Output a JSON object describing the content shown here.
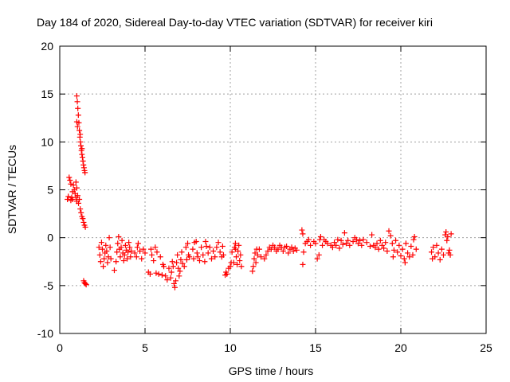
{
  "chart_data": {
    "type": "scatter",
    "title": "Day 184 of 2020, Sidereal Day-to-day VTEC variation (SDTVAR) for receiver kiri",
    "xlabel": "GPS time / hours",
    "ylabel": "SDTVAR / TECUs",
    "xlim": [
      0,
      25
    ],
    "ylim": [
      -10,
      20
    ],
    "xticks": [
      0,
      5,
      10,
      15,
      20,
      25
    ],
    "yticks": [
      -10,
      -5,
      0,
      5,
      10,
      15,
      20
    ],
    "xtick_labels": [
      "0",
      "5",
      "10",
      "15",
      "20",
      "25"
    ],
    "ytick_labels": [
      "-10",
      "-5",
      "0",
      "5",
      "10",
      "15",
      "20"
    ],
    "grid": true,
    "marker": "+",
    "color": "#ff0000",
    "series": [
      {
        "name": "SDTVAR",
        "points": [
          [
            0.45,
            4.0
          ],
          [
            0.5,
            4.3
          ],
          [
            0.55,
            6.3
          ],
          [
            0.6,
            6.0
          ],
          [
            0.65,
            5.6
          ],
          [
            0.7,
            4.2
          ],
          [
            0.75,
            4.8
          ],
          [
            0.8,
            5.5
          ],
          [
            0.85,
            5.0
          ],
          [
            0.9,
            4.6
          ],
          [
            0.95,
            5.8
          ],
          [
            1.0,
            5.2
          ],
          [
            1.05,
            4.4
          ],
          [
            1.1,
            3.6
          ],
          [
            1.15,
            4.0
          ],
          [
            1.2,
            3.0
          ],
          [
            1.25,
            2.6
          ],
          [
            1.3,
            2.2
          ],
          [
            1.35,
            2.0
          ],
          [
            1.4,
            1.6
          ],
          [
            1.45,
            1.3
          ],
          [
            1.5,
            1.1
          ],
          [
            0.95,
            4.2
          ],
          [
            1.0,
            3.8
          ],
          [
            0.65,
            3.9
          ],
          [
            0.75,
            4.0
          ],
          [
            1.0,
            14.8
          ],
          [
            1.03,
            14.2
          ],
          [
            1.06,
            13.5
          ],
          [
            1.09,
            12.8
          ],
          [
            1.0,
            12.1
          ],
          [
            1.04,
            11.6
          ],
          [
            1.12,
            12.0
          ],
          [
            1.15,
            11.2
          ],
          [
            1.18,
            10.5
          ],
          [
            1.21,
            10.0
          ],
          [
            1.24,
            9.6
          ],
          [
            1.27,
            9.1
          ],
          [
            1.3,
            8.7
          ],
          [
            1.33,
            8.4
          ],
          [
            1.36,
            8.0
          ],
          [
            1.39,
            7.6
          ],
          [
            1.42,
            7.3
          ],
          [
            1.45,
            7.0
          ],
          [
            1.48,
            6.8
          ],
          [
            1.2,
            10.8
          ],
          [
            1.3,
            9.3
          ],
          [
            1.4,
            -4.5
          ],
          [
            1.45,
            -4.7
          ],
          [
            1.5,
            -4.8
          ],
          [
            1.55,
            -4.9
          ],
          [
            2.3,
            -1.0
          ],
          [
            2.35,
            -1.8
          ],
          [
            2.4,
            -2.5
          ],
          [
            2.45,
            -0.5
          ],
          [
            2.5,
            -1.2
          ],
          [
            2.55,
            -3.0
          ],
          [
            2.6,
            -2.2
          ],
          [
            2.65,
            -1.6
          ],
          [
            2.7,
            -0.8
          ],
          [
            2.75,
            -1.4
          ],
          [
            2.8,
            -2.6
          ],
          [
            2.85,
            -2.0
          ],
          [
            2.9,
            0.0
          ],
          [
            2.95,
            -1.0
          ],
          [
            3.0,
            -2.2
          ],
          [
            3.2,
            -3.4
          ],
          [
            3.3,
            -2.5
          ],
          [
            3.35,
            -1.5
          ],
          [
            3.4,
            -0.6
          ],
          [
            3.45,
            0.1
          ],
          [
            3.5,
            -1.2
          ],
          [
            3.55,
            -2.0
          ],
          [
            3.6,
            -1.0
          ],
          [
            3.65,
            -0.3
          ],
          [
            3.7,
            -1.6
          ],
          [
            3.75,
            -2.4
          ],
          [
            3.8,
            -1.8
          ],
          [
            3.85,
            -0.8
          ],
          [
            3.9,
            -1.3
          ],
          [
            3.95,
            -2.2
          ],
          [
            4.0,
            -1.5
          ],
          [
            4.05,
            -0.5
          ],
          [
            4.1,
            -1.0
          ],
          [
            4.15,
            -2.0
          ],
          [
            4.2,
            -1.4
          ],
          [
            4.4,
            -1.6
          ],
          [
            4.5,
            -2.0
          ],
          [
            4.55,
            -1.0
          ],
          [
            4.6,
            -0.6
          ],
          [
            4.7,
            -1.4
          ],
          [
            4.8,
            -2.2
          ],
          [
            4.9,
            -1.2
          ],
          [
            5.0,
            -1.6
          ],
          [
            5.2,
            -3.6
          ],
          [
            5.3,
            -3.8
          ],
          [
            5.35,
            -1.2
          ],
          [
            5.4,
            -1.8
          ],
          [
            5.5,
            -2.4
          ],
          [
            5.6,
            -1.0
          ],
          [
            5.65,
            -3.7
          ],
          [
            5.7,
            -1.5
          ],
          [
            5.8,
            -3.8
          ],
          [
            5.9,
            -2.0
          ],
          [
            6.0,
            -3.9
          ],
          [
            6.05,
            -2.8
          ],
          [
            6.1,
            -3.0
          ],
          [
            6.2,
            -4.0
          ],
          [
            6.3,
            -4.4
          ],
          [
            6.4,
            -3.2
          ],
          [
            6.5,
            -4.2
          ],
          [
            6.55,
            -3.6
          ],
          [
            6.6,
            -2.5
          ],
          [
            6.65,
            -3.0
          ],
          [
            6.7,
            -4.8
          ],
          [
            6.75,
            -5.2
          ],
          [
            6.8,
            -4.5
          ],
          [
            6.85,
            -2.6
          ],
          [
            6.9,
            -1.8
          ],
          [
            6.95,
            -3.2
          ],
          [
            7.0,
            -4.0
          ],
          [
            7.05,
            -3.5
          ],
          [
            7.1,
            -2.3
          ],
          [
            7.15,
            -1.5
          ],
          [
            7.2,
            -2.7
          ],
          [
            7.3,
            -3.0
          ],
          [
            7.4,
            -1.0
          ],
          [
            7.45,
            -2.3
          ],
          [
            7.5,
            -0.6
          ],
          [
            7.55,
            -1.8
          ],
          [
            7.6,
            -2.0
          ],
          [
            7.8,
            -1.2
          ],
          [
            7.85,
            -2.2
          ],
          [
            7.9,
            -0.5
          ],
          [
            8.0,
            -0.4
          ],
          [
            8.05,
            -1.6
          ],
          [
            8.1,
            -2.0
          ],
          [
            8.2,
            -2.4
          ],
          [
            8.3,
            -1.0
          ],
          [
            8.4,
            -1.8
          ],
          [
            8.5,
            -2.5
          ],
          [
            8.55,
            -0.4
          ],
          [
            8.6,
            -0.9
          ],
          [
            8.7,
            -1.6
          ],
          [
            8.8,
            -1.0
          ],
          [
            8.9,
            -2.2
          ],
          [
            9.0,
            -1.4
          ],
          [
            9.1,
            -2.0
          ],
          [
            9.2,
            -1.0
          ],
          [
            9.3,
            -0.5
          ],
          [
            9.4,
            -1.5
          ],
          [
            9.5,
            -2.0
          ],
          [
            9.55,
            -0.9
          ],
          [
            9.6,
            -1.8
          ],
          [
            9.7,
            -3.9
          ],
          [
            9.75,
            -3.6
          ],
          [
            9.8,
            -3.8
          ],
          [
            9.9,
            -3.2
          ],
          [
            10.0,
            -3.0
          ],
          [
            10.05,
            -2.6
          ],
          [
            10.1,
            -1.5
          ],
          [
            10.2,
            -2.6
          ],
          [
            10.25,
            -1.0
          ],
          [
            10.3,
            -0.6
          ],
          [
            10.35,
            -2.0
          ],
          [
            10.4,
            -2.8
          ],
          [
            10.45,
            -1.4
          ],
          [
            10.5,
            -0.8
          ],
          [
            10.55,
            -2.4
          ],
          [
            10.6,
            -1.8
          ],
          [
            10.65,
            -3.0
          ],
          [
            10.3,
            -1.2
          ],
          [
            11.3,
            -3.5
          ],
          [
            11.35,
            -3.0
          ],
          [
            11.4,
            -2.2
          ],
          [
            11.45,
            -1.6
          ],
          [
            11.5,
            -2.6
          ],
          [
            11.55,
            -1.2
          ],
          [
            11.6,
            -1.8
          ],
          [
            11.7,
            -1.2
          ],
          [
            11.8,
            -2.0
          ],
          [
            12.0,
            -2.2
          ],
          [
            12.1,
            -1.8
          ],
          [
            12.2,
            -1.4
          ],
          [
            12.3,
            -1.0
          ],
          [
            12.4,
            -1.2
          ],
          [
            12.5,
            -0.8
          ],
          [
            12.6,
            -1.0
          ],
          [
            12.7,
            -1.4
          ],
          [
            12.8,
            -1.2
          ],
          [
            12.9,
            -0.8
          ],
          [
            13.0,
            -1.0
          ],
          [
            13.1,
            -1.4
          ],
          [
            13.2,
            -1.0
          ],
          [
            13.3,
            -0.9
          ],
          [
            13.4,
            -1.6
          ],
          [
            13.5,
            -1.2
          ],
          [
            13.6,
            -1.0
          ],
          [
            13.7,
            -1.4
          ],
          [
            13.8,
            -1.1
          ],
          [
            13.9,
            -1.3
          ],
          [
            14.2,
            0.8
          ],
          [
            14.25,
            0.4
          ],
          [
            14.25,
            -2.8
          ],
          [
            14.3,
            -1.5
          ],
          [
            14.4,
            -0.6
          ],
          [
            14.5,
            -0.4
          ],
          [
            14.6,
            -0.2
          ],
          [
            14.7,
            -0.8
          ],
          [
            14.9,
            -0.4
          ],
          [
            15.0,
            -0.6
          ],
          [
            15.1,
            -2.2
          ],
          [
            15.2,
            -1.8
          ],
          [
            15.25,
            -0.2
          ],
          [
            15.3,
            0.1
          ],
          [
            15.4,
            -0.8
          ],
          [
            15.5,
            -0.2
          ],
          [
            15.6,
            -0.4
          ],
          [
            15.7,
            -0.6
          ],
          [
            15.9,
            -0.8
          ],
          [
            16.0,
            -1.0
          ],
          [
            16.1,
            -0.5
          ],
          [
            16.2,
            -0.8
          ],
          [
            16.3,
            -0.2
          ],
          [
            16.4,
            -1.1
          ],
          [
            16.5,
            -0.3
          ],
          [
            16.6,
            -0.7
          ],
          [
            16.7,
            0.5
          ],
          [
            16.8,
            -0.6
          ],
          [
            16.9,
            -0.3
          ],
          [
            17.0,
            -0.8
          ],
          [
            17.2,
            -0.4
          ],
          [
            17.3,
            0.0
          ],
          [
            17.4,
            -0.2
          ],
          [
            17.5,
            -0.6
          ],
          [
            17.6,
            -0.3
          ],
          [
            17.7,
            -0.8
          ],
          [
            17.8,
            -0.2
          ],
          [
            18.0,
            -0.5
          ],
          [
            18.2,
            -0.9
          ],
          [
            18.3,
            0.3
          ],
          [
            18.4,
            -0.8
          ],
          [
            18.5,
            -1.0
          ],
          [
            18.6,
            -0.6
          ],
          [
            18.7,
            -1.2
          ],
          [
            18.8,
            -0.3
          ],
          [
            18.9,
            -0.8
          ],
          [
            19.0,
            -1.1
          ],
          [
            19.1,
            -0.5
          ],
          [
            19.2,
            -1.4
          ],
          [
            19.3,
            0.7
          ],
          [
            19.4,
            0.2
          ],
          [
            19.5,
            -0.6
          ],
          [
            19.55,
            -2.0
          ],
          [
            19.6,
            -1.3
          ],
          [
            19.7,
            -0.3
          ],
          [
            19.8,
            -1.5
          ],
          [
            19.9,
            -0.8
          ],
          [
            20.0,
            -1.9
          ],
          [
            20.1,
            -1.2
          ],
          [
            20.2,
            -2.2
          ],
          [
            20.25,
            -2.6
          ],
          [
            20.3,
            -0.6
          ],
          [
            20.4,
            -1.6
          ],
          [
            20.5,
            -2.0
          ],
          [
            20.6,
            -0.9
          ],
          [
            20.7,
            -1.8
          ],
          [
            20.75,
            -0.2
          ],
          [
            20.8,
            0.1
          ],
          [
            20.9,
            -1.2
          ],
          [
            21.8,
            -1.5
          ],
          [
            21.85,
            -2.2
          ],
          [
            21.9,
            -1.0
          ],
          [
            22.0,
            -2.0
          ],
          [
            22.1,
            -0.8
          ],
          [
            22.2,
            -1.6
          ],
          [
            22.3,
            -2.3
          ],
          [
            22.4,
            -1.2
          ],
          [
            22.5,
            -1.8
          ],
          [
            22.6,
            0.3
          ],
          [
            22.65,
            0.6
          ],
          [
            22.7,
            -0.3
          ],
          [
            22.75,
            0.1
          ],
          [
            22.8,
            -1.6
          ],
          [
            22.85,
            -1.3
          ],
          [
            22.9,
            -1.8
          ],
          [
            22.95,
            0.4
          ]
        ]
      }
    ]
  }
}
